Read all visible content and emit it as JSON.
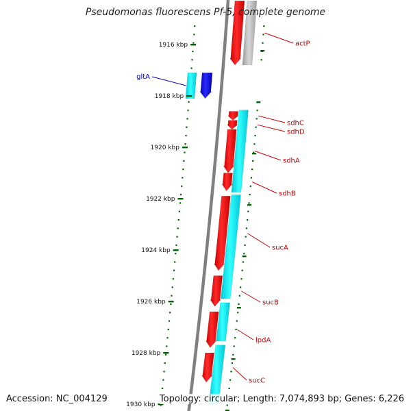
{
  "title": "Pseudomonas fluorescens Pf-5, complete genome",
  "accession": "Accession: NC_004129",
  "summary": "Topology: circular; Length: 7,074,893 bp; Genes: 6,226",
  "colors": {
    "backbone": "#808080",
    "forward_feature": "#ff0000",
    "reverse_feature": "#00ffff",
    "gltA_forward": "#0000ff",
    "actP_reverse": "#bfbfbf",
    "tick": "#006400",
    "forward_label": "#cc0000",
    "gltA_label": "#0000aa"
  },
  "ticks": [
    {
      "kbp": 1916,
      "label": "1916 kbp"
    },
    {
      "kbp": 1918,
      "label": "1918 kbp"
    },
    {
      "kbp": 1920,
      "label": "1920 kbp"
    },
    {
      "kbp": 1922,
      "label": "1922 kbp"
    },
    {
      "kbp": 1924,
      "label": "1924 kbp"
    },
    {
      "kbp": 1926,
      "label": "1926 kbp"
    },
    {
      "kbp": 1928,
      "label": "1928 kbp"
    },
    {
      "kbp": 1930,
      "label": "1930 kbp"
    }
  ],
  "genes": [
    {
      "name": "actP",
      "start_kbp": 1914.3,
      "end_kbp": 1916.8,
      "strand": "forward"
    },
    {
      "name": "gltA",
      "start_kbp": 1917.1,
      "end_kbp": 1918.1,
      "strand": "forward"
    },
    {
      "name": "sdhC",
      "start_kbp": 1918.6,
      "end_kbp": 1918.95,
      "strand": "forward"
    },
    {
      "name": "sdhD",
      "start_kbp": 1918.95,
      "end_kbp": 1919.3,
      "strand": "forward"
    },
    {
      "name": "sdhA",
      "start_kbp": 1919.3,
      "end_kbp": 1921.0,
      "strand": "forward"
    },
    {
      "name": "sdhB",
      "start_kbp": 1921.0,
      "end_kbp": 1921.7,
      "strand": "forward"
    },
    {
      "name": "sucA",
      "start_kbp": 1921.9,
      "end_kbp": 1924.8,
      "strand": "forward"
    },
    {
      "name": "sucB",
      "start_kbp": 1925.0,
      "end_kbp": 1926.2,
      "strand": "forward"
    },
    {
      "name": "lpdA",
      "start_kbp": 1926.4,
      "end_kbp": 1927.8,
      "strand": "forward"
    },
    {
      "name": "sucC",
      "start_kbp": 1928.0,
      "end_kbp": 1929.15,
      "strand": "forward"
    }
  ],
  "gene_labels": [
    {
      "name": "actP",
      "side": "right"
    },
    {
      "name": "gltA",
      "side": "left"
    },
    {
      "name": "sdhC",
      "side": "right"
    },
    {
      "name": "sdhD",
      "side": "right"
    },
    {
      "name": "sdhA",
      "side": "right"
    },
    {
      "name": "sdhB",
      "side": "right"
    },
    {
      "name": "sucA",
      "side": "right"
    },
    {
      "name": "sucB",
      "side": "right"
    },
    {
      "name": "lpdA",
      "side": "right"
    },
    {
      "name": "sucC",
      "side": "right"
    }
  ]
}
